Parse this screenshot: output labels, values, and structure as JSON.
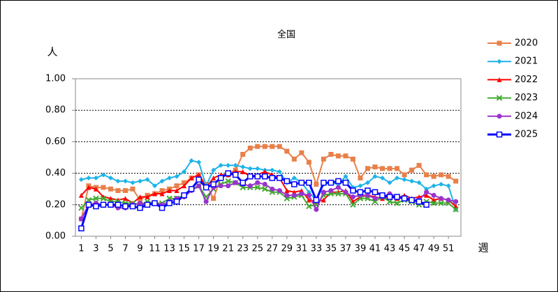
{
  "chart_data": {
    "type": "line",
    "title": "全国",
    "y_label": "人",
    "x_label": "週",
    "x": [
      1,
      2,
      3,
      4,
      5,
      6,
      7,
      8,
      9,
      10,
      11,
      12,
      13,
      14,
      15,
      16,
      17,
      18,
      19,
      20,
      21,
      22,
      23,
      24,
      25,
      26,
      27,
      28,
      29,
      30,
      31,
      32,
      33,
      34,
      35,
      36,
      37,
      38,
      39,
      40,
      41,
      42,
      43,
      44,
      45,
      46,
      47,
      48,
      49,
      50,
      51,
      52
    ],
    "xlim": [
      0.2,
      52.7
    ],
    "xticks": [
      1,
      3,
      5,
      7,
      9,
      11,
      13,
      15,
      17,
      19,
      21,
      23,
      25,
      27,
      29,
      31,
      33,
      35,
      37,
      39,
      41,
      43,
      45,
      47,
      49,
      51
    ],
    "ylim": [
      0,
      1
    ],
    "yticks": [
      {
        "value": 0,
        "label": "0.00"
      },
      {
        "value": 0.2,
        "label": "0.20"
      },
      {
        "value": 0.4,
        "label": "0.40"
      },
      {
        "value": 0.6,
        "label": "0.60"
      },
      {
        "value": 0.8,
        "label": "0.80"
      },
      {
        "value": 1,
        "label": "1.00"
      }
    ],
    "grid": true,
    "legend": "right",
    "series": [
      {
        "name": "2020",
        "color": "#e8804a",
        "marker": "square",
        "line_width": 2,
        "values": [
          0.11,
          0.32,
          0.31,
          0.31,
          0.3,
          0.29,
          0.29,
          0.3,
          0.23,
          0.26,
          0.27,
          0.29,
          0.3,
          0.32,
          0.34,
          0.37,
          0.39,
          0.33,
          0.24,
          0.37,
          0.4,
          0.42,
          0.52,
          0.56,
          0.57,
          0.57,
          0.57,
          0.57,
          0.54,
          0.49,
          0.53,
          0.47,
          0.33,
          0.49,
          0.52,
          0.51,
          0.51,
          0.49,
          0.37,
          0.43,
          0.44,
          0.43,
          0.43,
          0.43,
          0.39,
          0.42,
          0.45,
          0.39,
          0.38,
          0.39,
          0.38,
          0.35
        ]
      },
      {
        "name": "2021",
        "color": "#1eb4e8",
        "marker": "diamond",
        "line_width": 2,
        "values": [
          0.36,
          0.37,
          0.37,
          0.39,
          0.37,
          0.35,
          0.35,
          0.34,
          0.35,
          0.36,
          0.32,
          0.35,
          0.37,
          0.38,
          0.41,
          0.48,
          0.47,
          0.32,
          0.42,
          0.45,
          0.45,
          0.45,
          0.44,
          0.43,
          0.43,
          0.42,
          0.42,
          0.41,
          0.34,
          0.37,
          0.34,
          0.28,
          0.23,
          0.33,
          0.34,
          0.33,
          0.38,
          0.31,
          0.32,
          0.34,
          0.38,
          0.37,
          0.34,
          0.37,
          0.36,
          0.35,
          0.34,
          0.3,
          0.32,
          0.33,
          0.32,
          0.17
        ]
      },
      {
        "name": "2022",
        "color": "#ff0000",
        "marker": "triangle",
        "line_width": 2,
        "values": [
          0.26,
          0.31,
          0.3,
          0.25,
          0.24,
          0.23,
          0.24,
          0.21,
          0.25,
          0.25,
          0.27,
          0.27,
          0.29,
          0.29,
          0.32,
          0.37,
          0.39,
          0.31,
          0.37,
          0.39,
          0.39,
          0.41,
          0.41,
          0.38,
          0.39,
          0.41,
          0.39,
          0.37,
          0.29,
          0.28,
          0.29,
          0.23,
          0.22,
          0.23,
          0.28,
          0.28,
          0.29,
          0.22,
          0.25,
          0.26,
          0.25,
          0.24,
          0.25,
          0.24,
          0.26,
          0.24,
          0.25,
          0.26,
          0.23,
          0.24,
          0.23,
          0.19
        ]
      },
      {
        "name": "2023",
        "color": "#44aa33",
        "marker": "cross",
        "line_width": 2,
        "values": [
          0.18,
          0.23,
          0.24,
          0.24,
          0.22,
          0.22,
          0.21,
          0.21,
          0.2,
          0.22,
          0.21,
          0.21,
          0.24,
          0.24,
          0.26,
          0.3,
          0.32,
          0.25,
          0.3,
          0.33,
          0.35,
          0.34,
          0.31,
          0.31,
          0.31,
          0.3,
          0.28,
          0.28,
          0.24,
          0.25,
          0.26,
          0.19,
          0.2,
          0.26,
          0.27,
          0.27,
          0.27,
          0.2,
          0.24,
          0.24,
          0.22,
          0.25,
          0.22,
          0.21,
          0.23,
          0.22,
          0.2,
          0.22,
          0.21,
          0.21,
          0.21,
          0.17
        ]
      },
      {
        "name": "2024",
        "color": "#9933cc",
        "marker": "circle",
        "line_width": 2,
        "values": [
          0.11,
          0.2,
          0.21,
          0.2,
          0.2,
          0.18,
          0.18,
          0.2,
          0.21,
          0.2,
          0.21,
          0.2,
          0.22,
          0.24,
          0.25,
          0.29,
          0.32,
          0.22,
          0.31,
          0.32,
          0.32,
          0.34,
          0.33,
          0.32,
          0.34,
          0.33,
          0.3,
          0.29,
          0.26,
          0.26,
          0.27,
          0.26,
          0.17,
          0.28,
          0.29,
          0.31,
          0.28,
          0.25,
          0.26,
          0.26,
          0.24,
          0.25,
          0.27,
          0.25,
          0.24,
          0.23,
          0.23,
          0.28,
          0.26,
          0.24,
          0.23,
          0.22
        ]
      },
      {
        "name": "2025",
        "color": "#0000ff",
        "marker": "open-square",
        "line_width": 3,
        "values": [
          0.05,
          0.2,
          0.19,
          0.2,
          0.2,
          0.2,
          0.19,
          0.19,
          0.18,
          0.2,
          0.21,
          0.18,
          0.21,
          0.22,
          0.26,
          0.3,
          0.36,
          0.31,
          0.33,
          0.37,
          0.4,
          0.39,
          0.34,
          0.38,
          0.38,
          0.38,
          0.37,
          0.37,
          0.35,
          0.33,
          0.34,
          0.34,
          0.23,
          0.34,
          0.34,
          0.35,
          0.34,
          0.29,
          0.28,
          0.29,
          0.28,
          0.26,
          0.25,
          0.25,
          0.24,
          0.23,
          0.22,
          0.2,
          null,
          null,
          null,
          null
        ]
      }
    ]
  }
}
